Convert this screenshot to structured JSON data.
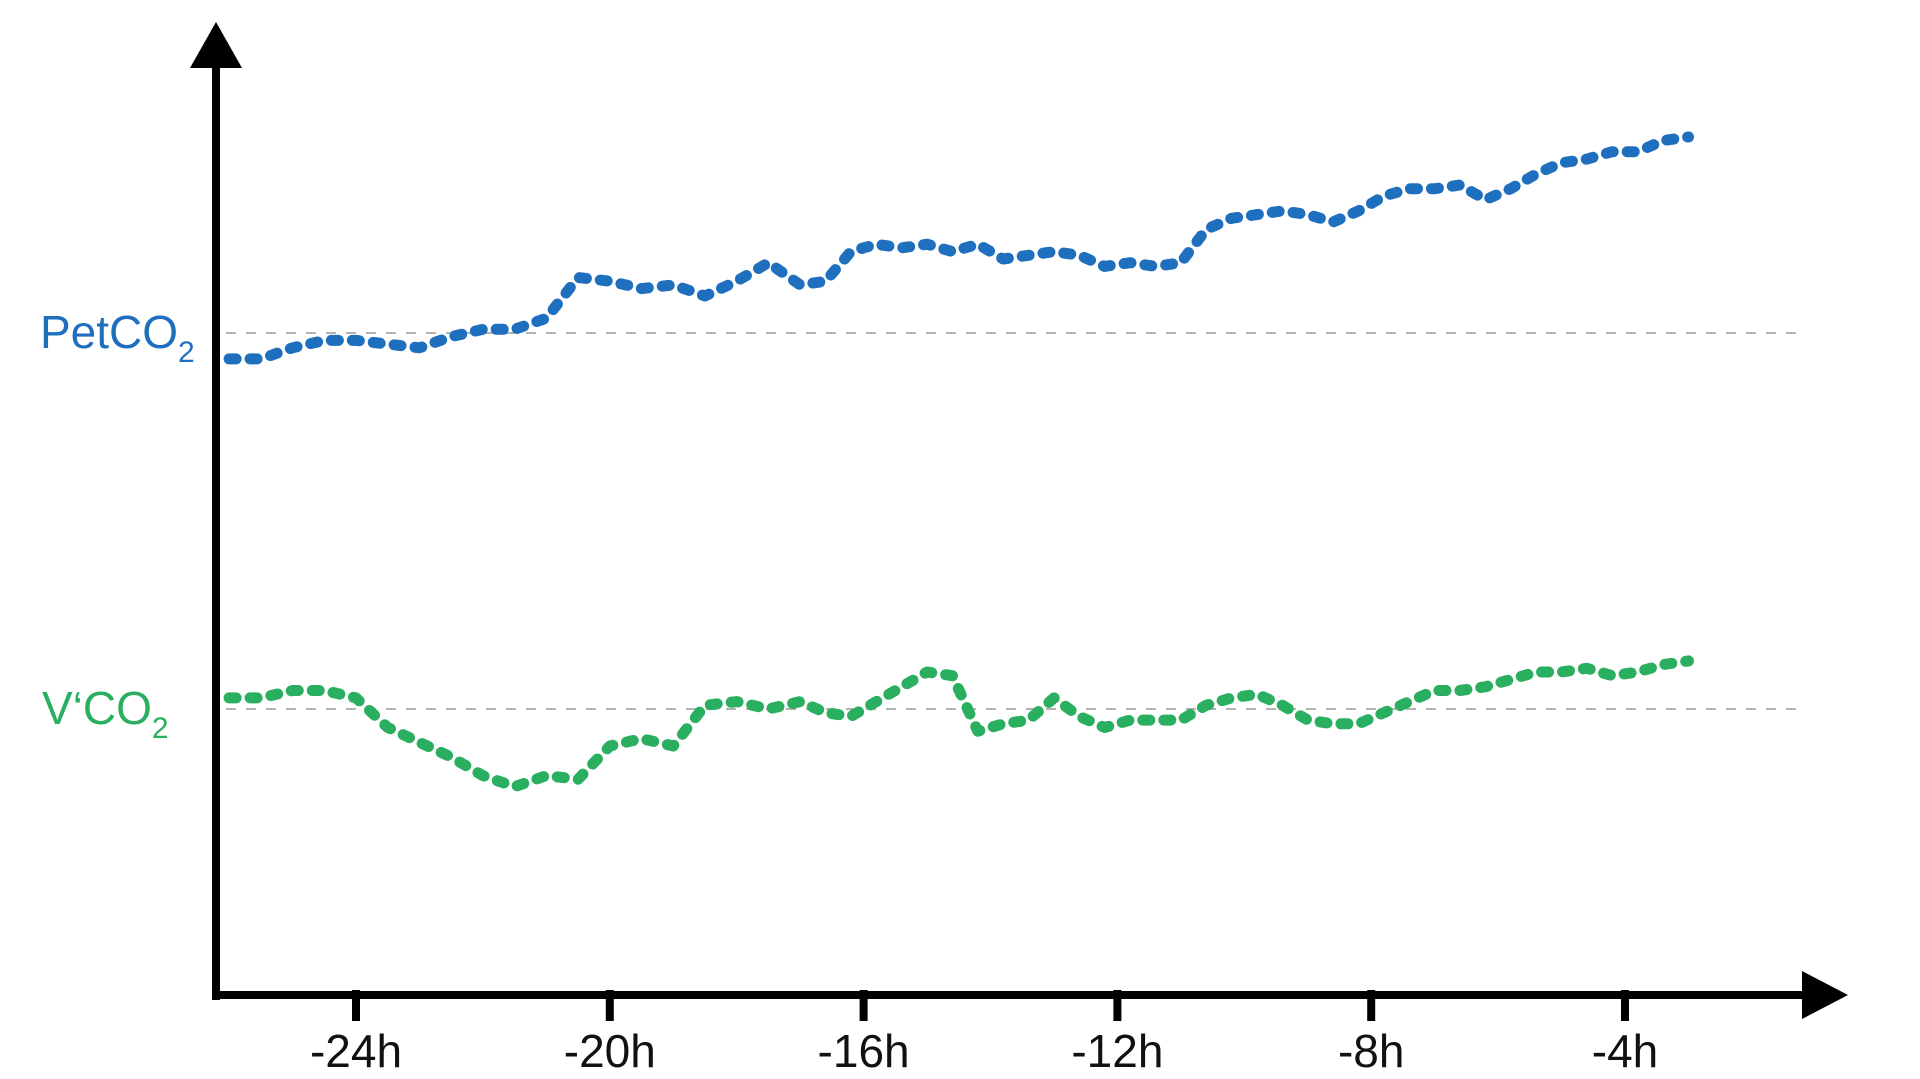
{
  "chart_data": {
    "type": "line",
    "title": "",
    "xlabel": "",
    "ylabel": "",
    "x_ticks": [
      "-24h",
      "-20h",
      "-16h",
      "-12h",
      "-8h",
      "-4h"
    ],
    "x_tick_values": [
      -24,
      -20,
      -16,
      -12,
      -8,
      -4
    ],
    "xlim": [
      -26.2,
      -1
    ],
    "grid": false,
    "reference_lines": "dashed gray baselines at each series level",
    "series": [
      {
        "name": "PetCO2",
        "label_main": "PetCO",
        "label_sub": "2",
        "color": "#1f6fbf",
        "style": "dotted",
        "baseline": 0,
        "x": [
          -26,
          -25.5,
          -25,
          -24.5,
          -24,
          -23.5,
          -23,
          -22.5,
          -22,
          -21.5,
          -21,
          -20.5,
          -20,
          -19.5,
          -19,
          -18.5,
          -18,
          -17.5,
          -17,
          -16.6,
          -16.2,
          -15.8,
          -15.4,
          -15,
          -14.6,
          -14.2,
          -13.8,
          -13.4,
          -13,
          -12.6,
          -12.2,
          -11.8,
          -11.4,
          -11,
          -10.6,
          -10.2,
          -9.8,
          -9.4,
          -9,
          -8.6,
          -8.2,
          -7.8,
          -7.4,
          -7,
          -6.6,
          -6.2,
          -5.8,
          -5.4,
          -5,
          -4.6,
          -4.2,
          -3.8,
          -3.4,
          -3
        ],
        "values": [
          -0.7,
          -0.7,
          -0.4,
          -0.2,
          -0.2,
          -0.3,
          -0.4,
          -0.1,
          0.1,
          0.1,
          0.4,
          1.5,
          1.4,
          1.2,
          1.3,
          1.0,
          1.4,
          1.9,
          1.3,
          1.4,
          2.2,
          2.4,
          2.3,
          2.4,
          2.2,
          2.4,
          2.0,
          2.1,
          2.2,
          2.1,
          1.8,
          1.9,
          1.8,
          1.9,
          2.8,
          3.1,
          3.2,
          3.3,
          3.2,
          3.0,
          3.3,
          3.7,
          3.9,
          3.9,
          4.0,
          3.6,
          3.9,
          4.3,
          4.6,
          4.7,
          4.9,
          4.9,
          5.2,
          5.3
        ]
      },
      {
        "name": "V'CO2",
        "label_main": "V‘CO",
        "label_sub": "2",
        "color": "#2aae5f",
        "style": "dotted",
        "baseline": 0,
        "x": [
          -26,
          -25.5,
          -25,
          -24.5,
          -24,
          -23.5,
          -23,
          -22.5,
          -22,
          -21.5,
          -21,
          -20.5,
          -20,
          -19.5,
          -19,
          -18.5,
          -18,
          -17.5,
          -17,
          -16.6,
          -16.2,
          -15.8,
          -15.4,
          -15,
          -14.6,
          -14.2,
          -13.8,
          -13.4,
          -13,
          -12.6,
          -12.2,
          -11.8,
          -11.4,
          -11,
          -10.6,
          -10.2,
          -9.8,
          -9.4,
          -9,
          -8.6,
          -8.2,
          -7.8,
          -7.4,
          -7,
          -6.6,
          -6.2,
          -5.8,
          -5.4,
          -5,
          -4.6,
          -4.2,
          -3.8,
          -3.4,
          -3
        ],
        "values": [
          0.3,
          0.3,
          0.5,
          0.5,
          0.3,
          -0.5,
          -0.9,
          -1.3,
          -1.8,
          -2.1,
          -1.8,
          -1.9,
          -1.0,
          -0.8,
          -1.0,
          0.1,
          0.2,
          0.0,
          0.2,
          -0.1,
          -0.2,
          0.2,
          0.6,
          1.0,
          0.9,
          -0.6,
          -0.4,
          -0.3,
          0.3,
          -0.2,
          -0.5,
          -0.3,
          -0.3,
          -0.3,
          0.1,
          0.3,
          0.4,
          0.1,
          -0.3,
          -0.4,
          -0.4,
          -0.1,
          0.2,
          0.5,
          0.5,
          0.6,
          0.8,
          1.0,
          1.0,
          1.1,
          0.9,
          1.0,
          1.2,
          1.3
        ]
      }
    ]
  }
}
